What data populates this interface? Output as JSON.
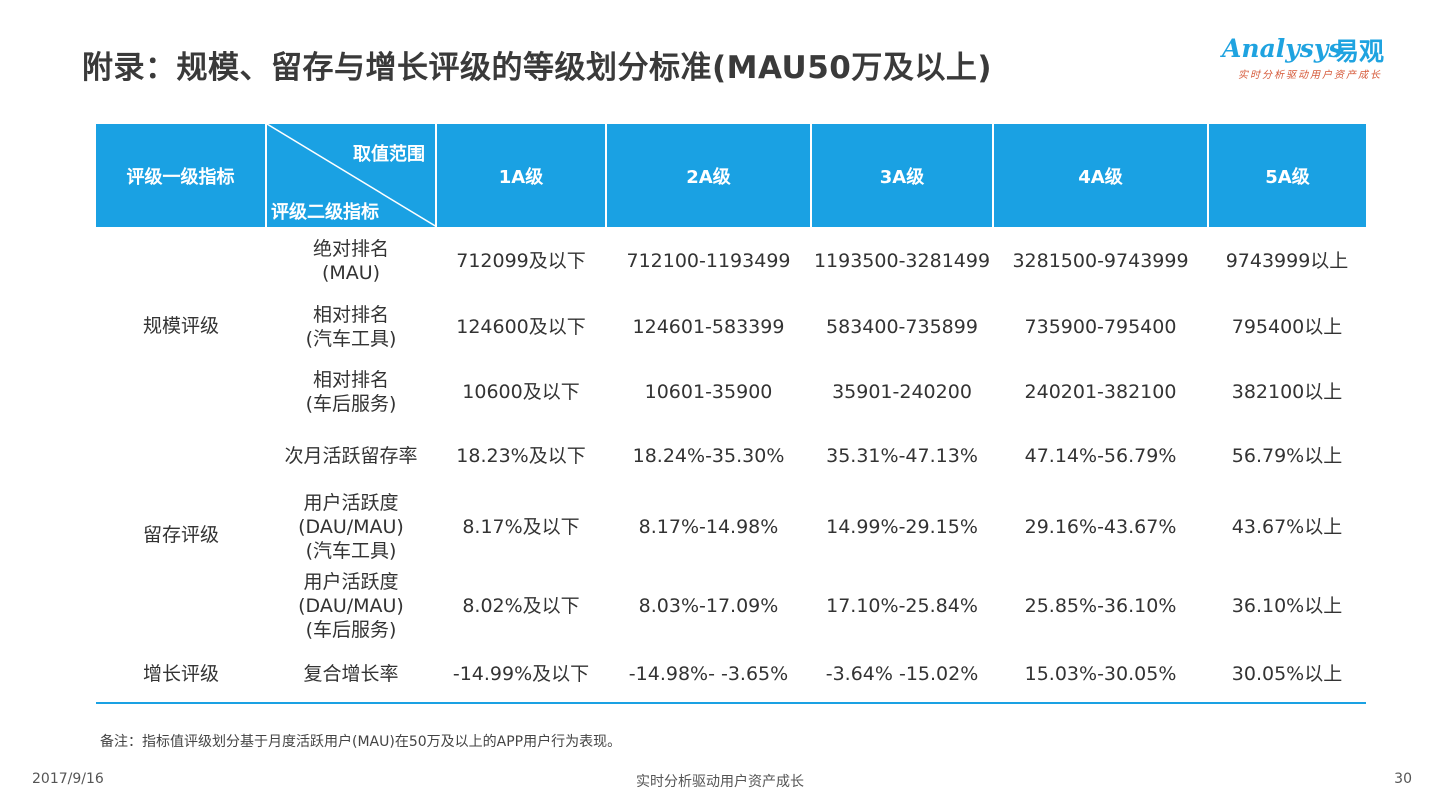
{
  "title": "附录：规模、留存与增长评级的等级划分标准(MAU50万及以上)",
  "logo": {
    "en": "Analysys",
    "cn": "易观",
    "slogan": "实时分析驱动用户资产成长",
    "color": "#1fa3e0"
  },
  "table": {
    "header": {
      "first": "评级一级指标",
      "diag_top": "取值范围",
      "diag_bottom": "评级二级指标",
      "grades": [
        "1A级",
        "2A级",
        "3A级",
        "4A级",
        "5A级"
      ]
    },
    "groups": [
      {
        "label": "规模评级",
        "rows": [
          {
            "label": [
              "绝对排名",
              "(MAU)"
            ],
            "values": [
              "712099及以下",
              "712100-1193499",
              "1193500-3281499",
              "3281500-9743999",
              "9743999以上"
            ]
          },
          {
            "label": [
              "相对排名",
              "(汽车工具)"
            ],
            "values": [
              "124600及以下",
              "124601-583399",
              "583400-735899",
              "735900-795400",
              "795400以上"
            ]
          },
          {
            "label": [
              "相对排名",
              "(车后服务)"
            ],
            "values": [
              "10600及以下",
              "10601-35900",
              "35901-240200",
              "240201-382100",
              "382100以上"
            ]
          }
        ]
      },
      {
        "label": "留存评级",
        "rows": [
          {
            "label": [
              "次月活跃留存率"
            ],
            "values": [
              "18.23%及以下",
              "18.24%-35.30%",
              "35.31%-47.13%",
              "47.14%-56.79%",
              "56.79%以上"
            ]
          },
          {
            "label": [
              "用户活跃度",
              "(DAU/MAU)",
              "(汽车工具)"
            ],
            "values": [
              "8.17%及以下",
              "8.17%-14.98%",
              "14.99%-29.15%",
              "29.16%-43.67%",
              "43.67%以上"
            ]
          },
          {
            "label": [
              "用户活跃度",
              "(DAU/MAU)",
              "(车后服务)"
            ],
            "values": [
              "8.02%及以下",
              "8.03%-17.09%",
              "17.10%-25.84%",
              "25.85%-36.10%",
              "36.10%以上"
            ]
          }
        ]
      },
      {
        "label": "增长评级",
        "rows": [
          {
            "label": [
              "复合增长率"
            ],
            "values": [
              "-14.99%及以下",
              "-14.98%- -3.65%",
              "-3.64% -15.02%",
              "15.03%-30.05%",
              "30.05%以上"
            ]
          }
        ]
      }
    ],
    "header_color": "#1aa1e3"
  },
  "note": "备注：指标值评级划分基于月度活跃用户(MAU)在50万及以上的APP用户行为表现。",
  "footer": {
    "date": "2017/9/16",
    "center": "实时分析驱动用户资产成长",
    "page": "30"
  }
}
